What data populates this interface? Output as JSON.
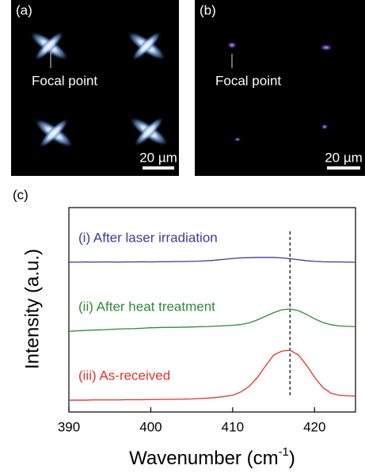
{
  "panel_a": {
    "label": "(a)",
    "annotation": "Focal point",
    "scale_bar": "20 µm"
  },
  "panel_b": {
    "label": "(b)",
    "annotation": "Focal point",
    "scale_bar": "20 µm"
  },
  "chart_data": {
    "type": "line",
    "panel_label": "(c)",
    "x_label": [
      "Wavenumber (cm",
      "-1",
      ")"
    ],
    "y_label": "Intensity (a.u.)",
    "x": [
      390,
      391,
      392,
      393,
      394,
      395,
      396,
      397,
      398,
      399,
      400,
      401,
      402,
      403,
      404,
      405,
      406,
      407,
      408,
      409,
      410,
      411,
      412,
      413,
      414,
      415,
      416,
      417,
      418,
      419,
      420,
      421,
      422,
      423,
      424,
      425
    ],
    "xlim": [
      390,
      425
    ],
    "xticks": [
      390,
      400,
      410,
      420
    ],
    "ylim": [
      0,
      10
    ],
    "vline": 417,
    "series": [
      {
        "name": "(i) After laser irradiation",
        "color": "#3b3b9a",
        "values": [
          7.33,
          7.33,
          7.34,
          7.33,
          7.34,
          7.34,
          7.33,
          7.34,
          7.34,
          7.35,
          7.34,
          7.35,
          7.35,
          7.36,
          7.36,
          7.37,
          7.38,
          7.4,
          7.43,
          7.47,
          7.51,
          7.54,
          7.55,
          7.56,
          7.56,
          7.56,
          7.54,
          7.5,
          7.45,
          7.4,
          7.37,
          7.35,
          7.34,
          7.34,
          7.33,
          7.33
        ]
      },
      {
        "name": "(ii) After heat treatment",
        "color": "#2e8b3a",
        "values": [
          3.95,
          3.97,
          3.99,
          4.01,
          4.02,
          4.04,
          4.06,
          4.07,
          4.08,
          4.1,
          4.12,
          4.13,
          4.14,
          4.14,
          4.15,
          4.16,
          4.17,
          4.18,
          4.2,
          4.22,
          4.24,
          4.28,
          4.36,
          4.5,
          4.68,
          4.86,
          5.0,
          5.04,
          4.96,
          4.78,
          4.56,
          4.38,
          4.27,
          4.21,
          4.19,
          4.18
        ]
      },
      {
        "name": "(iii) As-received",
        "color": "#e8302a",
        "values": [
          0.58,
          0.58,
          0.58,
          0.59,
          0.59,
          0.59,
          0.59,
          0.6,
          0.6,
          0.6,
          0.61,
          0.61,
          0.62,
          0.62,
          0.63,
          0.64,
          0.66,
          0.68,
          0.71,
          0.76,
          0.82,
          0.98,
          1.25,
          1.68,
          2.25,
          2.78,
          2.98,
          3.02,
          2.8,
          2.3,
          1.7,
          1.2,
          0.92,
          0.82,
          0.79,
          0.78
        ]
      }
    ]
  }
}
